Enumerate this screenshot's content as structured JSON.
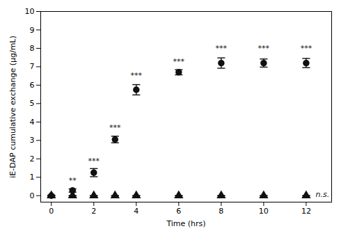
{
  "chart_data": {
    "type": "scatter",
    "x": [
      0,
      1,
      2,
      3,
      4,
      6,
      8,
      10,
      12
    ],
    "series": [
      {
        "color": "#111111",
        "marker": "circle",
        "values": [
          0.0,
          0.28,
          1.25,
          3.05,
          5.75,
          6.7,
          7.2,
          7.2,
          7.2
        ],
        "errors": [
          0.03,
          0.09,
          0.22,
          0.18,
          0.28,
          0.14,
          0.28,
          0.22,
          0.25
        ]
      },
      {
        "color": "#111111",
        "marker": "triangle",
        "values": [
          0.0,
          0.0,
          0.0,
          0.0,
          0.0,
          0.0,
          0.0,
          0.0,
          0.0
        ],
        "errors": [
          0.0,
          0.0,
          0.0,
          0.0,
          0.0,
          0.0,
          0.0,
          0.0,
          0.0
        ]
      }
    ],
    "annotations": [
      {
        "x": 1,
        "y": 0.7,
        "text": "**"
      },
      {
        "x": 2,
        "y": 1.75,
        "text": "***"
      },
      {
        "x": 3,
        "y": 3.55,
        "text": "***"
      },
      {
        "x": 4,
        "y": 6.4,
        "text": "***"
      },
      {
        "x": 6,
        "y": 7.15,
        "text": "***"
      },
      {
        "x": 8,
        "y": 7.85,
        "text": "***"
      },
      {
        "x": 10,
        "y": 7.85,
        "text": "***"
      },
      {
        "x": 12,
        "y": 7.85,
        "text": "***"
      },
      {
        "x": 12.45,
        "y": 0.05,
        "text": "n.s.",
        "anchor": "left"
      }
    ],
    "color": "#111111",
    "xlabel": "Time (hrs)",
    "ylabel": "iE-DAP cumulative exchange (µg/mL)",
    "xlim": [
      -0.5,
      13.2
    ],
    "ylim": [
      -0.35,
      10.0
    ],
    "xticks": [
      0,
      2,
      4,
      6,
      8,
      10,
      12
    ],
    "yticks": [
      0,
      1,
      2,
      3,
      4,
      5,
      6,
      7,
      8,
      9,
      10
    ],
    "grid": false
  }
}
